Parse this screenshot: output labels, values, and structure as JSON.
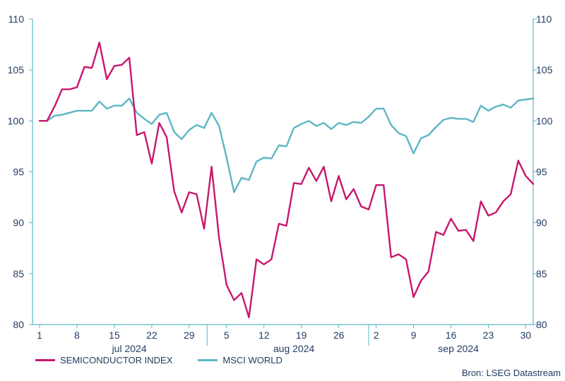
{
  "chart_data": {
    "type": "line",
    "ylim": [
      80,
      110
    ],
    "yticks": [
      80,
      85,
      90,
      95,
      100,
      105,
      110
    ],
    "xticks": [
      "1",
      "8",
      "15",
      "22",
      "29",
      "5",
      "12",
      "19",
      "26",
      "2",
      "9",
      "16",
      "23",
      "30"
    ],
    "months": [
      "jul 2024",
      "aug 2024",
      "sep 2024"
    ],
    "series": [
      {
        "name": "SEMICONDUCTOR INDEX",
        "color": "#c8176e",
        "values": [
          100.0,
          100.0,
          101.4,
          103.1,
          103.1,
          103.3,
          105.3,
          105.2,
          107.7,
          104.1,
          105.4,
          105.5,
          106.2,
          98.6,
          98.9,
          95.8,
          99.8,
          98.4,
          93.1,
          91.0,
          93.0,
          92.8,
          89.4,
          95.5,
          88.5,
          83.9,
          82.4,
          83.1,
          80.7,
          86.4,
          85.9,
          86.4,
          89.9,
          89.7,
          93.9,
          93.8,
          95.4,
          94.1,
          95.5,
          92.1,
          94.6,
          92.3,
          93.3,
          91.6,
          91.3,
          93.7,
          93.7,
          86.6,
          86.9,
          86.4,
          82.7,
          84.3,
          85.2,
          89.1,
          88.8,
          90.4,
          89.2,
          89.3,
          88.2,
          92.1,
          90.7,
          91.0,
          92.1,
          92.8,
          96.1,
          94.6,
          93.8
        ]
      },
      {
        "name": "MSCI WORLD",
        "color": "#5db6c4",
        "values": [
          100.0,
          100.0,
          100.5,
          100.6,
          100.8,
          101.0,
          101.0,
          101.0,
          101.9,
          101.2,
          101.5,
          101.5,
          102.2,
          100.8,
          100.2,
          99.7,
          100.6,
          100.8,
          98.9,
          98.2,
          99.1,
          99.6,
          99.3,
          100.8,
          99.5,
          96.4,
          93.0,
          94.4,
          94.2,
          96.0,
          96.4,
          96.3,
          97.6,
          97.5,
          99.3,
          99.7,
          100.0,
          99.5,
          99.8,
          99.2,
          99.8,
          99.6,
          99.9,
          99.8,
          100.4,
          101.2,
          101.2,
          99.6,
          98.8,
          98.5,
          96.8,
          98.3,
          98.6,
          99.4,
          100.1,
          100.3,
          100.2,
          100.2,
          99.9,
          101.5,
          101.0,
          101.4,
          101.6,
          101.3,
          102.0,
          102.1,
          102.2
        ]
      }
    ]
  },
  "source": "Bron: LSEG Datastream"
}
